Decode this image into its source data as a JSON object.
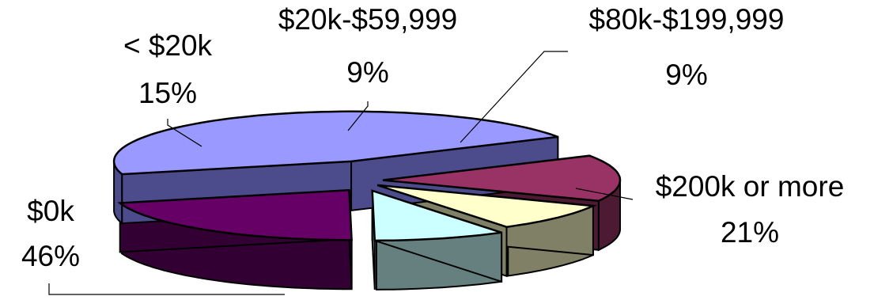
{
  "chart_data": {
    "type": "pie",
    "style": "3d-exploded",
    "legend": "none",
    "slices": [
      {
        "category": "$0k",
        "value": 46,
        "pct_label": "46%",
        "top_color": "#9999ff",
        "side_color": "#4c4c8c"
      },
      {
        "category": "< $20k",
        "value": 15,
        "pct_label": "15%",
        "top_color": "#993366",
        "side_color": "#4d1a33"
      },
      {
        "category": "$20k-$59,999",
        "value": 9,
        "pct_label": "9%",
        "top_color": "#ffffcc",
        "side_color": "#808066"
      },
      {
        "category": "$80k-$199,999",
        "value": 9,
        "pct_label": "9%",
        "top_color": "#ccffff",
        "side_color": "#668080"
      },
      {
        "category": "$200k or more",
        "value": 21,
        "pct_label": "21%",
        "top_color": "#660066",
        "side_color": "#330033"
      }
    ]
  }
}
